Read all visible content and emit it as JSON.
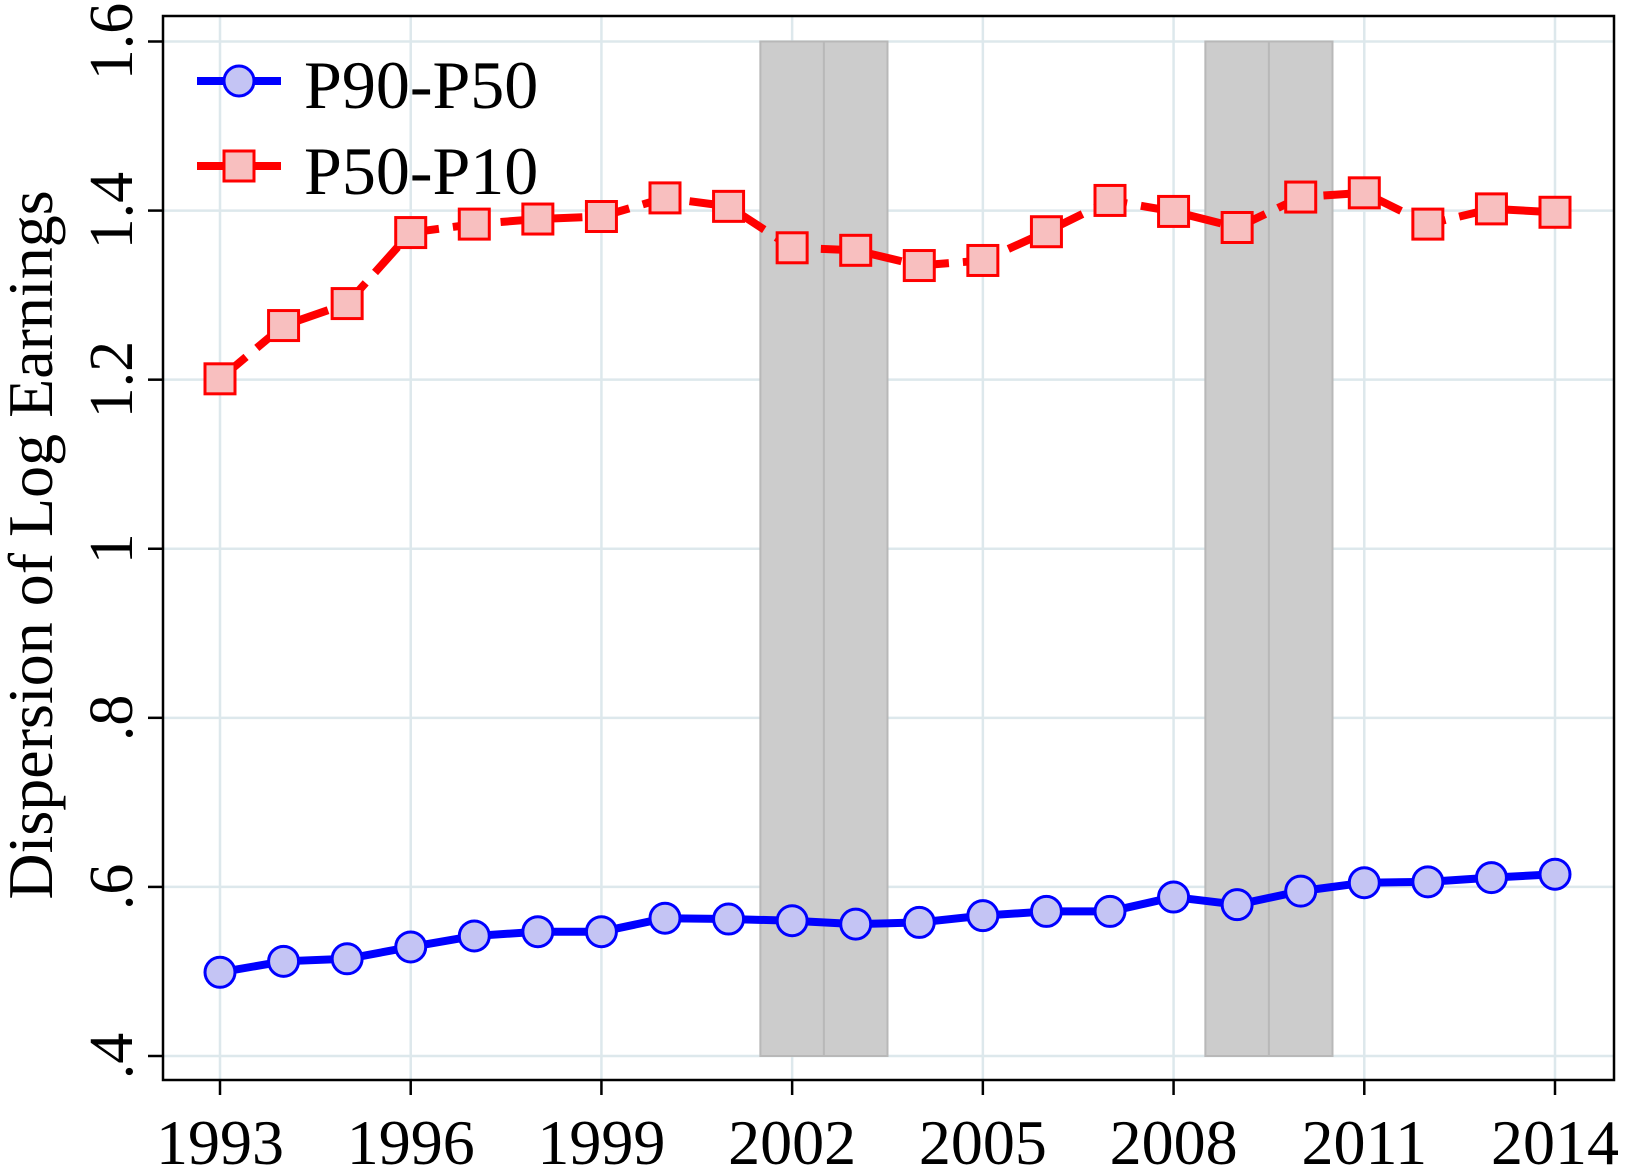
{
  "chart_data": {
    "type": "line",
    "ylabel": "Dispersion of Log Earnings",
    "xlim": [
      1993,
      2014
    ],
    "ylim": [
      0.4,
      1.6
    ],
    "x_ticks": [
      1993,
      1996,
      1999,
      2002,
      2005,
      2008,
      2011,
      2014
    ],
    "y_ticks": [
      0.4,
      0.6,
      0.8,
      1.0,
      1.2,
      1.4,
      1.6
    ],
    "y_tick_labels": [
      ".4",
      ".6",
      ".8",
      "1",
      "1.2",
      "1.4",
      "1.6"
    ],
    "grid": true,
    "grid_color": "#dde8ec",
    "legend": {
      "placement": "top-left"
    },
    "x": [
      1993,
      1994,
      1995,
      1996,
      1997,
      1998,
      1999,
      2000,
      2001,
      2002,
      2003,
      2004,
      2005,
      2006,
      2007,
      2008,
      2009,
      2010,
      2011,
      2012,
      2013,
      2014
    ],
    "series": [
      {
        "name": "P90-P50",
        "values": [
          0.499,
          0.512,
          0.515,
          0.529,
          0.542,
          0.547,
          0.547,
          0.563,
          0.562,
          0.56,
          0.556,
          0.558,
          0.566,
          0.571,
          0.571,
          0.588,
          0.579,
          0.595,
          0.605,
          0.606,
          0.611,
          0.615
        ],
        "color": "#0000ff",
        "marker": "circle",
        "marker_fill": "#c4c4f4",
        "line_style": "solid"
      },
      {
        "name": "P50-P10",
        "values": [
          1.201,
          1.264,
          1.29,
          1.374,
          1.384,
          1.39,
          1.393,
          1.415,
          1.405,
          1.356,
          1.353,
          1.335,
          1.341,
          1.375,
          1.412,
          1.399,
          1.38,
          1.416,
          1.421,
          1.384,
          1.402,
          1.398
        ],
        "color": "#ff0000",
        "marker": "square",
        "marker_fill": "#f8bfbf",
        "line_style": "dashed"
      }
    ],
    "shaded_regions": [
      {
        "x0": 2001.5,
        "x1": 2002.5
      },
      {
        "x0": 2002.5,
        "x1": 2003.5
      },
      {
        "x0": 2008.5,
        "x1": 2009.5
      },
      {
        "x0": 2009.5,
        "x1": 2010.5
      }
    ],
    "shade_color": "#cccccc",
    "shade_edge_color": "#b8b8b8"
  }
}
